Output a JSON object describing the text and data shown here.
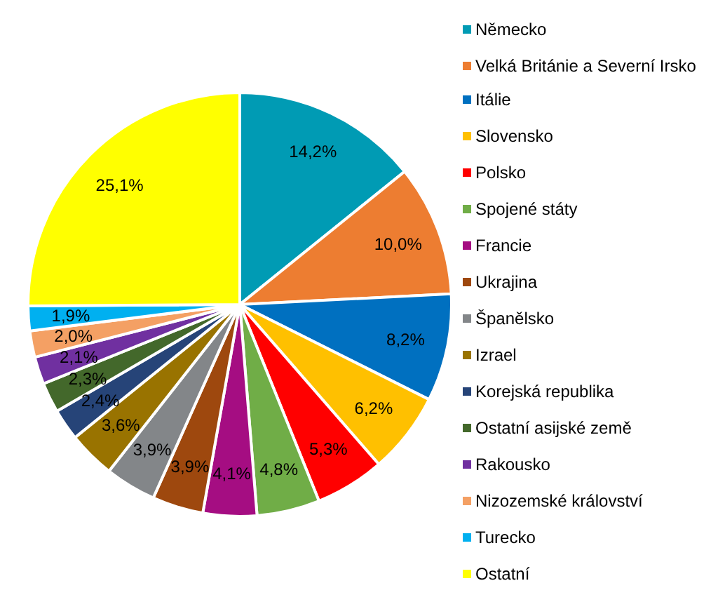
{
  "chart_data": {
    "type": "pie",
    "categories": [
      "Německo",
      "Velká Británie a Severní Irsko",
      "Itálie",
      "Slovensko",
      "Polsko",
      "Spojené státy",
      "Francie",
      "Ukrajina",
      "Španělsko",
      "Izrael",
      "Korejská republika",
      "Ostatní asijské země",
      "Rakousko",
      "Nizozemské království",
      "Turecko",
      "Ostatní"
    ],
    "values": [
      14.2,
      10.0,
      8.2,
      6.2,
      5.3,
      4.8,
      4.1,
      3.9,
      3.9,
      3.6,
      2.4,
      2.3,
      2.1,
      2.0,
      1.9,
      25.1
    ],
    "value_labels": [
      "14,2%",
      "10,0%",
      "8,2%",
      "6,2%",
      "5,3%",
      "4,8%",
      "4,1%",
      "3,9%",
      "3,9%",
      "3,6%",
      "2,4%",
      "2,3%",
      "2,1%",
      "2,0%",
      "1,9%",
      "25,1%"
    ],
    "colors": [
      "#009bb4",
      "#ed7d31",
      "#0070c0",
      "#ffc000",
      "#ff0000",
      "#70ad47",
      "#a50d82",
      "#9e480e",
      "#838689",
      "#997300",
      "#264478",
      "#43682b",
      "#7030a0",
      "#f4a064",
      "#00b0f0",
      "#ffff00"
    ],
    "legend": "right"
  }
}
